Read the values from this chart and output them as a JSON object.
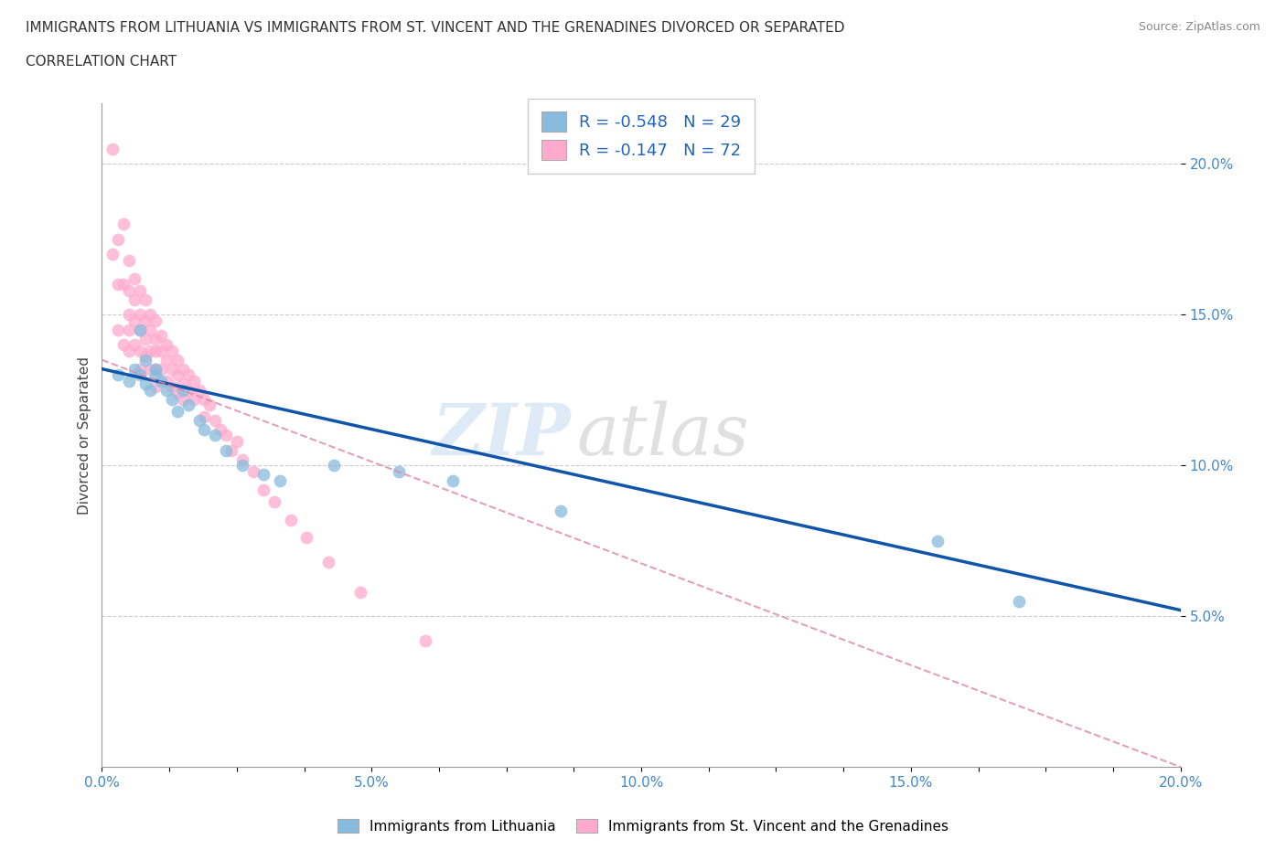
{
  "title_line1": "IMMIGRANTS FROM LITHUANIA VS IMMIGRANTS FROM ST. VINCENT AND THE GRENADINES DIVORCED OR SEPARATED",
  "title_line2": "CORRELATION CHART",
  "source_text": "Source: ZipAtlas.com",
  "watermark_part1": "ZIP",
  "watermark_part2": "atlas",
  "ylabel": "Divorced or Separated",
  "xlim": [
    0.0,
    0.2
  ],
  "ylim": [
    0.0,
    0.22
  ],
  "ytick_labels": [
    "5.0%",
    "10.0%",
    "15.0%",
    "20.0%"
  ],
  "xtick_labels": [
    "0.0%",
    "",
    "",
    "",
    "5.0%",
    "",
    "",
    "",
    "10.0%",
    "",
    "",
    "",
    "15.0%",
    "",
    "",
    "",
    "20.0%"
  ],
  "legend_label1": "Immigrants from Lithuania",
  "legend_label2": "Immigrants from St. Vincent and the Grenadines",
  "r1": -0.548,
  "n1": 29,
  "r2": -0.147,
  "n2": 72,
  "color_blue": "#88bbdd",
  "color_pink": "#ffaacc",
  "line_color_blue": "#1155aa",
  "line_color_pink": "#dd88aa",
  "blue_scatter_x": [
    0.003,
    0.005,
    0.006,
    0.007,
    0.007,
    0.008,
    0.008,
    0.009,
    0.01,
    0.01,
    0.011,
    0.012,
    0.013,
    0.014,
    0.015,
    0.016,
    0.018,
    0.019,
    0.021,
    0.023,
    0.026,
    0.03,
    0.033,
    0.043,
    0.055,
    0.065,
    0.085,
    0.155,
    0.17
  ],
  "blue_scatter_y": [
    0.13,
    0.128,
    0.132,
    0.13,
    0.145,
    0.127,
    0.135,
    0.125,
    0.132,
    0.13,
    0.128,
    0.125,
    0.122,
    0.118,
    0.125,
    0.12,
    0.115,
    0.112,
    0.11,
    0.105,
    0.1,
    0.097,
    0.095,
    0.1,
    0.098,
    0.095,
    0.085,
    0.075,
    0.055
  ],
  "pink_scatter_x": [
    0.002,
    0.002,
    0.003,
    0.003,
    0.003,
    0.004,
    0.004,
    0.004,
    0.005,
    0.005,
    0.005,
    0.005,
    0.005,
    0.006,
    0.006,
    0.006,
    0.006,
    0.007,
    0.007,
    0.007,
    0.007,
    0.007,
    0.008,
    0.008,
    0.008,
    0.008,
    0.009,
    0.009,
    0.009,
    0.009,
    0.01,
    0.01,
    0.01,
    0.01,
    0.01,
    0.011,
    0.011,
    0.011,
    0.012,
    0.012,
    0.012,
    0.013,
    0.013,
    0.013,
    0.014,
    0.014,
    0.014,
    0.015,
    0.015,
    0.015,
    0.016,
    0.016,
    0.017,
    0.017,
    0.018,
    0.019,
    0.019,
    0.02,
    0.021,
    0.022,
    0.023,
    0.024,
    0.025,
    0.026,
    0.028,
    0.03,
    0.032,
    0.035,
    0.038,
    0.042,
    0.048,
    0.06
  ],
  "pink_scatter_y": [
    0.205,
    0.17,
    0.175,
    0.16,
    0.145,
    0.18,
    0.16,
    0.14,
    0.168,
    0.158,
    0.15,
    0.145,
    0.138,
    0.162,
    0.155,
    0.148,
    0.14,
    0.158,
    0.15,
    0.145,
    0.138,
    0.132,
    0.155,
    0.148,
    0.142,
    0.136,
    0.15,
    0.145,
    0.138,
    0.132,
    0.148,
    0.142,
    0.138,
    0.132,
    0.126,
    0.143,
    0.138,
    0.132,
    0.14,
    0.135,
    0.128,
    0.138,
    0.132,
    0.126,
    0.135,
    0.13,
    0.124,
    0.132,
    0.127,
    0.122,
    0.13,
    0.125,
    0.128,
    0.122,
    0.125,
    0.122,
    0.116,
    0.12,
    0.115,
    0.112,
    0.11,
    0.105,
    0.108,
    0.102,
    0.098,
    0.092,
    0.088,
    0.082,
    0.076,
    0.068,
    0.058,
    0.042
  ],
  "blue_line_x0": 0.0,
  "blue_line_y0": 0.132,
  "blue_line_x1": 0.2,
  "blue_line_y1": 0.052,
  "pink_line_x0": 0.0,
  "pink_line_y0": 0.135,
  "pink_line_x1": 0.2,
  "pink_line_y1": 0.0
}
